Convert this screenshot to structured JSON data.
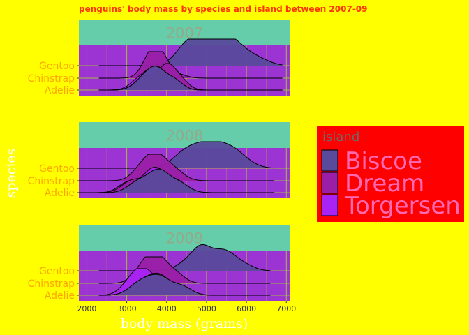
{
  "chart_data": {
    "type": "area",
    "subtype": "ridgeline-density",
    "title": "penguins' body mass by species and island between 2007-09",
    "xlabel": "body mass (grams)",
    "ylabel": "species",
    "xlim": [
      1800,
      7100
    ],
    "x_ticks": [
      2000,
      3000,
      4000,
      5000,
      6000,
      7000
    ],
    "categories": [
      "Adelie",
      "Chinstrap",
      "Gentoo"
    ],
    "legend": {
      "title": "island",
      "position": "right",
      "items": [
        {
          "name": "Biscoe",
          "color": "#5a4a9c"
        },
        {
          "name": "Dream",
          "color": "#9a1fa6"
        },
        {
          "name": "Torgersen",
          "color": "#a923f5"
        }
      ]
    },
    "colors": {
      "background": "#ffff00",
      "panel": "#9b34d3",
      "strip": "#66cdaa",
      "grid": "#a9c832",
      "legend_bg": "#ff0000",
      "title": "#ff3300"
    },
    "panels": [
      {
        "year": "2007",
        "ridges": [
          {
            "species": "Gentoo",
            "island": "Biscoe",
            "xmin": 2300,
            "xmax": 6900,
            "peaks": [
              [
                4500,
                0.35,
                250
              ],
              [
                4900,
                0.88,
                450
              ],
              [
                5600,
                0.85,
                380
              ],
              [
                6300,
                0.2,
                300
              ]
            ]
          },
          {
            "species": "Chinstrap",
            "island": "Dream",
            "xmin": 2300,
            "xmax": 6900,
            "peaks": [
              [
                3650,
                1.0,
                230
              ],
              [
                3900,
                0.45,
                200
              ],
              [
                4300,
                0.12,
                220
              ]
            ]
          },
          {
            "species": "Adelie",
            "island": "Torgersen",
            "xmin": 2300,
            "xmax": 6900,
            "peaks": [
              [
                3300,
                0.35,
                220
              ],
              [
                3750,
                0.85,
                250
              ],
              [
                4250,
                0.25,
                200
              ]
            ]
          },
          {
            "species": "Adelie",
            "island": "Dream",
            "xmin": 2300,
            "xmax": 6900,
            "peaks": [
              [
                3450,
                0.5,
                240
              ],
              [
                4000,
                0.9,
                210
              ],
              [
                4350,
                0.35,
                200
              ]
            ]
          },
          {
            "species": "Adelie",
            "island": "Biscoe",
            "xmin": 2300,
            "xmax": 6900,
            "peaks": [
              [
                3400,
                0.35,
                230
              ],
              [
                3750,
                0.75,
                230
              ],
              [
                4200,
                0.35,
                210
              ]
            ]
          }
        ]
      },
      {
        "year": "2008",
        "ridges": [
          {
            "species": "Gentoo",
            "island": "Biscoe",
            "xmin": 1800,
            "xmax": 6700,
            "peaks": [
              [
                4400,
                0.25,
                280
              ],
              [
                5000,
                0.95,
                480
              ],
              [
                5700,
                0.45,
                350
              ]
            ]
          },
          {
            "species": "Chinstrap",
            "island": "Dream",
            "xmin": 1800,
            "xmax": 6700,
            "peaks": [
              [
                3300,
                0.25,
                220
              ],
              [
                3700,
                1.0,
                280
              ],
              [
                4200,
                0.35,
                250
              ]
            ]
          },
          {
            "species": "Adelie",
            "island": "Torgersen",
            "xmin": 1800,
            "xmax": 6700,
            "peaks": [
              [
                3000,
                0.35,
                220
              ],
              [
                3700,
                0.95,
                300
              ],
              [
                4300,
                0.35,
                220
              ]
            ]
          },
          {
            "species": "Adelie",
            "island": "Dream",
            "xmin": 1800,
            "xmax": 6700,
            "peaks": [
              [
                3100,
                0.4,
                240
              ],
              [
                3750,
                0.8,
                300
              ],
              [
                4300,
                0.3,
                240
              ]
            ]
          },
          {
            "species": "Adelie",
            "island": "Biscoe",
            "xmin": 1800,
            "xmax": 6700,
            "peaks": [
              [
                3250,
                0.35,
                240
              ],
              [
                3800,
                0.85,
                280
              ],
              [
                4350,
                0.3,
                230
              ]
            ]
          }
        ]
      },
      {
        "year": "2009",
        "ridges": [
          {
            "species": "Gentoo",
            "island": "Biscoe",
            "xmin": 2300,
            "xmax": 6600,
            "peaks": [
              [
                4400,
                0.2,
                220
              ],
              [
                4850,
                0.85,
                250
              ],
              [
                5450,
                0.75,
                300
              ],
              [
                6000,
                0.15,
                230
              ]
            ]
          },
          {
            "species": "Chinstrap",
            "island": "Dream",
            "xmin": 2300,
            "xmax": 6600,
            "peaks": [
              [
                3400,
                0.45,
                250
              ],
              [
                3750,
                1.0,
                270
              ],
              [
                4250,
                0.3,
                220
              ]
            ]
          },
          {
            "species": "Adelie",
            "island": "Torgersen",
            "xmin": 2300,
            "xmax": 6600,
            "peaks": [
              [
                3050,
                0.35,
                230
              ],
              [
                3400,
                0.9,
                250
              ],
              [
                3900,
                0.4,
                260
              ],
              [
                4500,
                0.15,
                220
              ]
            ]
          },
          {
            "species": "Adelie",
            "island": "Dream",
            "xmin": 2300,
            "xmax": 6600,
            "peaks": [
              [
                3300,
                0.4,
                260
              ],
              [
                3800,
                0.75,
                280
              ],
              [
                4400,
                0.25,
                230
              ]
            ]
          },
          {
            "species": "Adelie",
            "island": "Biscoe",
            "xmin": 2300,
            "xmax": 6600,
            "peaks": [
              [
                3300,
                0.4,
                260
              ],
              [
                3800,
                0.7,
                290
              ],
              [
                4400,
                0.3,
                240
              ]
            ]
          }
        ]
      }
    ]
  }
}
